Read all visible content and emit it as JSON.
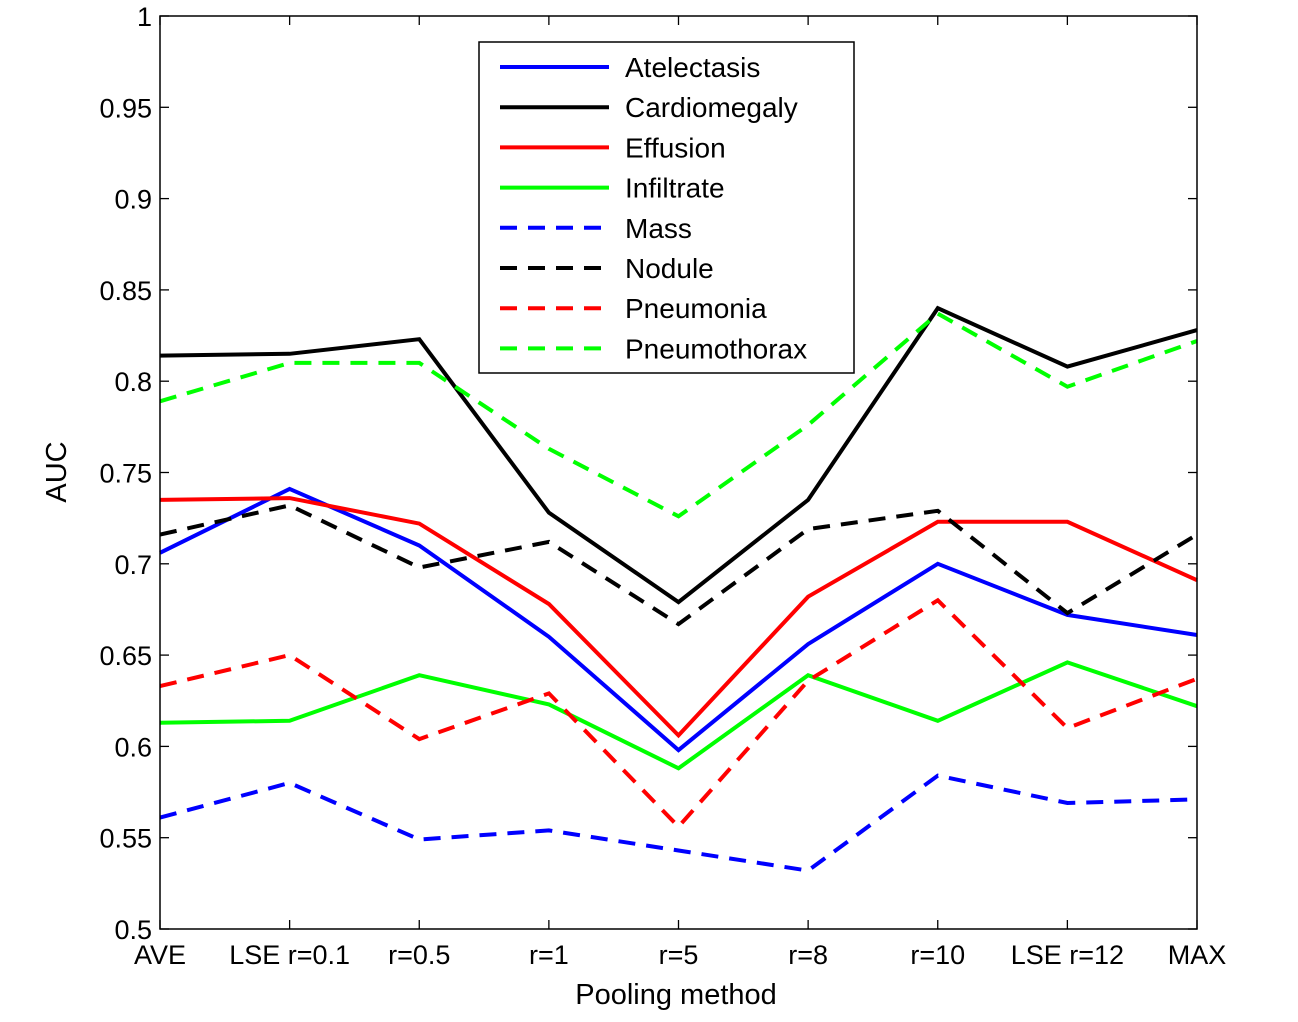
{
  "chart_data": {
    "type": "line",
    "xlabel": "Pooling method",
    "ylabel": "AUC",
    "ylim": [
      0.5,
      1
    ],
    "yticks": [
      "0.5",
      "0.55",
      "0.6",
      "0.65",
      "0.7",
      "0.75",
      "0.8",
      "0.85",
      "0.9",
      "0.95",
      "1"
    ],
    "categories": [
      "AVE",
      "LSE r=0.1",
      "r=0.5",
      "r=1",
      "r=5",
      "r=8",
      "r=10",
      "LSE r=12",
      "MAX"
    ],
    "legend_position": "top-center",
    "grid": false,
    "series": [
      {
        "name": "Atelectasis",
        "color": "#0000ff",
        "dash": "solid",
        "values": [
          0.706,
          0.741,
          0.71,
          0.66,
          0.598,
          0.656,
          0.7,
          0.672,
          0.661
        ]
      },
      {
        "name": "Cardiomegaly",
        "color": "#000000",
        "dash": "solid",
        "values": [
          0.814,
          0.815,
          0.823,
          0.728,
          0.679,
          0.735,
          0.84,
          0.808,
          0.828
        ]
      },
      {
        "name": "Effusion",
        "color": "#ff0000",
        "dash": "solid",
        "values": [
          0.735,
          0.736,
          0.722,
          0.678,
          0.606,
          0.682,
          0.723,
          0.723,
          0.691
        ]
      },
      {
        "name": "Infiltrate",
        "color": "#00ff00",
        "dash": "solid",
        "values": [
          0.613,
          0.614,
          0.639,
          0.623,
          0.588,
          0.639,
          0.614,
          0.646,
          0.622
        ]
      },
      {
        "name": "Mass",
        "color": "#0000ff",
        "dash": "dashed",
        "values": [
          0.561,
          0.58,
          0.549,
          0.554,
          0.543,
          0.532,
          0.584,
          0.569,
          0.571
        ]
      },
      {
        "name": "Nodule",
        "color": "#000000",
        "dash": "dashed",
        "values": [
          0.716,
          0.732,
          0.698,
          0.712,
          0.667,
          0.719,
          0.729,
          0.673,
          0.716
        ]
      },
      {
        "name": "Pneumonia",
        "color": "#ff0000",
        "dash": "dashed",
        "values": [
          0.633,
          0.65,
          0.604,
          0.629,
          0.556,
          0.636,
          0.68,
          0.61,
          0.637
        ]
      },
      {
        "name": "Pneumothorax",
        "color": "#00ff00",
        "dash": "dashed",
        "values": [
          0.789,
          0.81,
          0.81,
          0.763,
          0.726,
          0.776,
          0.837,
          0.797,
          0.822
        ]
      }
    ]
  }
}
